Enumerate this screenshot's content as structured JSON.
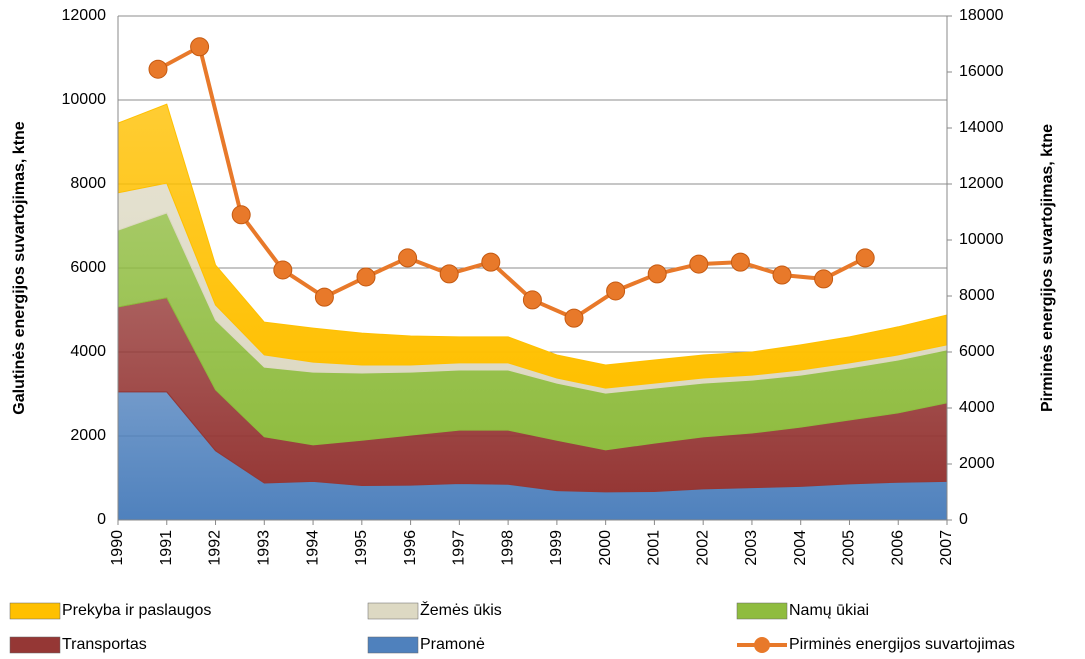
{
  "chart_data": {
    "type": "stacked-area-line",
    "ylabel": "Galutinės energijos suvartojimas,  ktne",
    "y2label": "Pirminės energijos suvartojimas,  ktne",
    "categories": [
      "1990",
      "1991",
      "1992",
      "1993",
      "1994",
      "1995",
      "1996",
      "1997",
      "1998",
      "1999",
      "2000",
      "2001",
      "2002",
      "2003",
      "2004",
      "2005",
      "2006",
      "2007"
    ],
    "ylim": [
      0,
      12000
    ],
    "yticks": [
      0,
      2000,
      4000,
      6000,
      8000,
      10000,
      12000
    ],
    "y2lim": [
      0,
      18000
    ],
    "y2ticks": [
      0,
      2000,
      4000,
      6000,
      8000,
      10000,
      12000,
      14000,
      16000,
      18000
    ],
    "grid": true,
    "legend": "bottom",
    "series": [
      {
        "name": "Pramonė",
        "color": "#4f81bd",
        "values": [
          3050,
          3050,
          1650,
          880,
          920,
          820,
          830,
          870,
          850,
          700,
          670,
          680,
          740,
          770,
          800,
          860,
          900,
          920
        ]
      },
      {
        "name": "Transportas",
        "color": "#953735",
        "values": [
          2020,
          2240,
          1450,
          1100,
          870,
          1080,
          1190,
          1270,
          1290,
          1200,
          1000,
          1150,
          1240,
          1300,
          1410,
          1520,
          1650,
          1870
        ]
      },
      {
        "name": "Namų ūkiai",
        "color": "#8fbc3f",
        "values": [
          1830,
          2020,
          1660,
          1660,
          1730,
          1600,
          1500,
          1430,
          1430,
          1360,
          1350,
          1310,
          1280,
          1260,
          1240,
          1240,
          1260,
          1260
        ]
      },
      {
        "name": "Žemės ūkis",
        "color": "#ddd9c3",
        "values": [
          890,
          710,
          360,
          290,
          240,
          190,
          170,
          170,
          170,
          120,
          120,
          120,
          120,
          120,
          120,
          120,
          120,
          120
        ]
      },
      {
        "name": "Prekyba ir paslaugos",
        "color": "#ffc000",
        "values": [
          1660,
          1880,
          950,
          780,
          810,
          760,
          690,
          620,
          620,
          550,
          550,
          550,
          550,
          550,
          600,
          620,
          670,
          710
        ]
      },
      {
        "name": "Pirminės energijos suvartojimas",
        "color": "#e8792a",
        "axis": "y2",
        "values": [
          16100,
          16900,
          10900,
          8930,
          7960,
          8680,
          9360,
          8790,
          9210,
          7860,
          7210,
          8180,
          8790,
          9140,
          9210,
          8750,
          8610,
          9360
        ]
      }
    ]
  }
}
